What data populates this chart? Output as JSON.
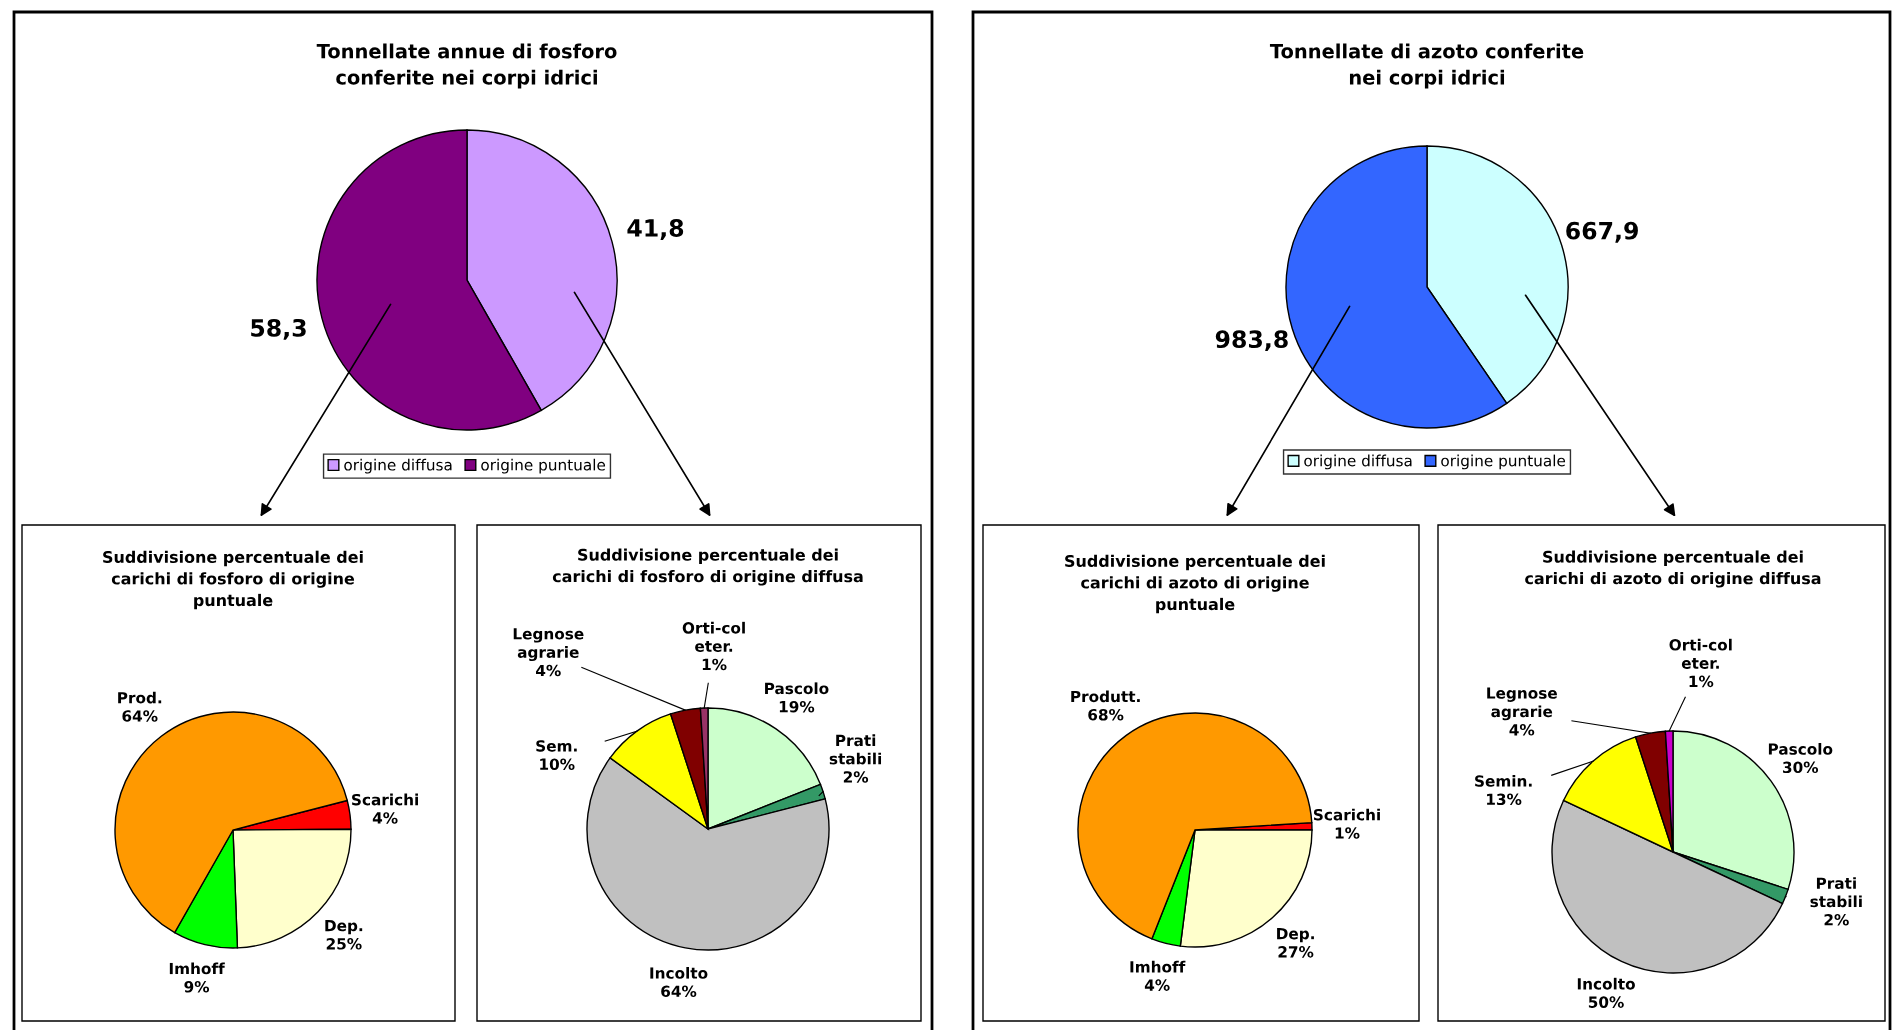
{
  "chart_data": [
    {
      "type": "pie",
      "title": "Tonnellate annue di fosforo\nconferite nei corpi idrici",
      "categories": [
        "origine diffusa",
        "origine puntuale"
      ],
      "values": [
        41.8,
        58.3
      ],
      "value_labels": [
        "41,8",
        "58,3"
      ],
      "colors": [
        "#cc99ff",
        "#800080"
      ],
      "legend": "bottom"
    },
    {
      "type": "pie",
      "title": "Suddivisione percentuale dei\ncarichi di fosforo di origine\npuntuale",
      "categories": [
        "Scarichi",
        "Dep.",
        "Imhoff",
        "Prod."
      ],
      "values": [
        4,
        25,
        9,
        64
      ],
      "value_labels": [
        "4%",
        "25%",
        "9%",
        "64%"
      ],
      "colors": [
        "#ff0000",
        "#ffffcc",
        "#00ff00",
        "#ff9900"
      ]
    },
    {
      "type": "pie",
      "title": "Suddivisione percentuale dei\ncarichi di fosforo di origine diffusa",
      "categories": [
        "Pascolo",
        "Prati\nstabili",
        "Incolto",
        "Sem.",
        "Legnose\nagrarie",
        "Orti-col\neter."
      ],
      "values": [
        19,
        2,
        64,
        10,
        4,
        1
      ],
      "value_labels": [
        "19%",
        "2%",
        "64%",
        "10%",
        "4%",
        "1%"
      ],
      "colors": [
        "#ccffcc",
        "#339966",
        "#c0c0c0",
        "#ffff00",
        "#800000",
        "#993366"
      ]
    },
    {
      "type": "pie",
      "title": "Tonnellate di azoto conferite\nnei corpi idrici",
      "categories": [
        "origine diffusa",
        "origine puntuale"
      ],
      "values": [
        667.9,
        983.8
      ],
      "value_labels": [
        "667,9",
        "983,8"
      ],
      "colors": [
        "#ccffff",
        "#3366ff"
      ],
      "legend": "bottom"
    },
    {
      "type": "pie",
      "title": "Suddivisione percentuale dei\ncarichi di azoto di origine\npuntuale",
      "categories": [
        "Scarichi",
        "Dep.",
        "Imhoff",
        "Produtt."
      ],
      "values": [
        1,
        27,
        4,
        68
      ],
      "value_labels": [
        "1%",
        "27%",
        "4%",
        "68%"
      ],
      "colors": [
        "#ff0000",
        "#ffffcc",
        "#00ff00",
        "#ff9900"
      ]
    },
    {
      "type": "pie",
      "title": "Suddivisione percentuale dei\ncarichi di azoto di origine diffusa",
      "categories": [
        "Pascolo",
        "Prati\nstabili",
        "Incolto",
        "Semin.",
        "Legnose\nagrarie",
        "Orti-col\neter."
      ],
      "values": [
        30,
        2,
        50,
        13,
        4,
        1
      ],
      "value_labels": [
        "30%",
        "2%",
        "50%",
        "13%",
        "4%",
        "1%"
      ],
      "colors": [
        "#ccffcc",
        "#339966",
        "#c0c0c0",
        "#ffff00",
        "#800000",
        "#cc00cc"
      ]
    }
  ]
}
